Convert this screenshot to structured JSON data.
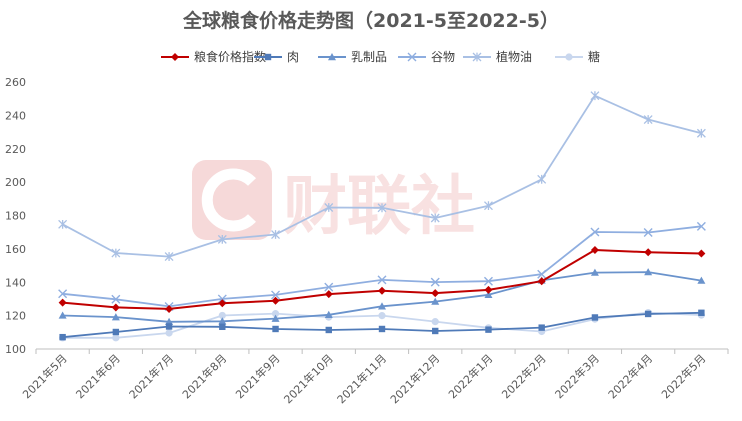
{
  "chart_data": {
    "type": "line",
    "title": "全球粮食价格走势图（2021-5至2022-5）",
    "xlabel": "",
    "ylabel": "",
    "ylim": [
      100,
      260
    ],
    "yticks": [
      100,
      120,
      140,
      160,
      180,
      200,
      220,
      240,
      260
    ],
    "grid": false,
    "legend_position": "top",
    "watermark": "财联社",
    "categories": [
      "2021年5月",
      "2021年6月",
      "2021年7月",
      "2021年8月",
      "2021年9月",
      "2021年10月",
      "2021年11月",
      "2021年12月",
      "2022年1月",
      "2022年2月",
      "2022年3月",
      "2022年4月",
      "2022年5月"
    ],
    "series": [
      {
        "name": "粮食价格指数",
        "color": "#c00000",
        "marker": "diamond",
        "width": 2,
        "values": [
          127.8,
          124.9,
          124.0,
          127.4,
          128.9,
          132.9,
          134.9,
          133.5,
          135.4,
          140.6,
          159.3,
          158.0,
          157.2
        ]
      },
      {
        "name": "肉",
        "color": "#4f7ab8",
        "marker": "square",
        "width": 1.8,
        "values": [
          107.1,
          110.2,
          113.5,
          113.3,
          112.0,
          111.4,
          112.0,
          110.8,
          111.6,
          112.8,
          118.9,
          121.0,
          121.7
        ]
      },
      {
        "name": "乳制品",
        "color": "#6a93cc",
        "marker": "triangle",
        "width": 1.8,
        "values": [
          120.1,
          119.1,
          116.3,
          116.6,
          118.2,
          120.5,
          125.6,
          128.4,
          132.5,
          141.1,
          145.8,
          146.1,
          141.0
        ]
      },
      {
        "name": "谷物",
        "color": "#8faee0",
        "marker": "x",
        "width": 1.8,
        "values": [
          133.1,
          129.8,
          125.5,
          130.0,
          132.4,
          137.1,
          141.4,
          140.1,
          140.6,
          144.8,
          170.1,
          169.8,
          173.5
        ]
      },
      {
        "name": "植物油",
        "color": "#a9c0e4",
        "marker": "star",
        "width": 1.8,
        "values": [
          174.7,
          157.5,
          155.4,
          165.7,
          168.6,
          184.8,
          184.6,
          178.5,
          185.9,
          201.7,
          251.8,
          237.5,
          229.3
        ]
      },
      {
        "name": "糖",
        "color": "#c9d7ee",
        "marker": "circle",
        "width": 1.8,
        "values": [
          106.7,
          106.7,
          109.6,
          120.1,
          121.2,
          119.1,
          120.0,
          116.4,
          112.7,
          110.5,
          117.9,
          121.8,
          120.3
        ]
      }
    ]
  }
}
